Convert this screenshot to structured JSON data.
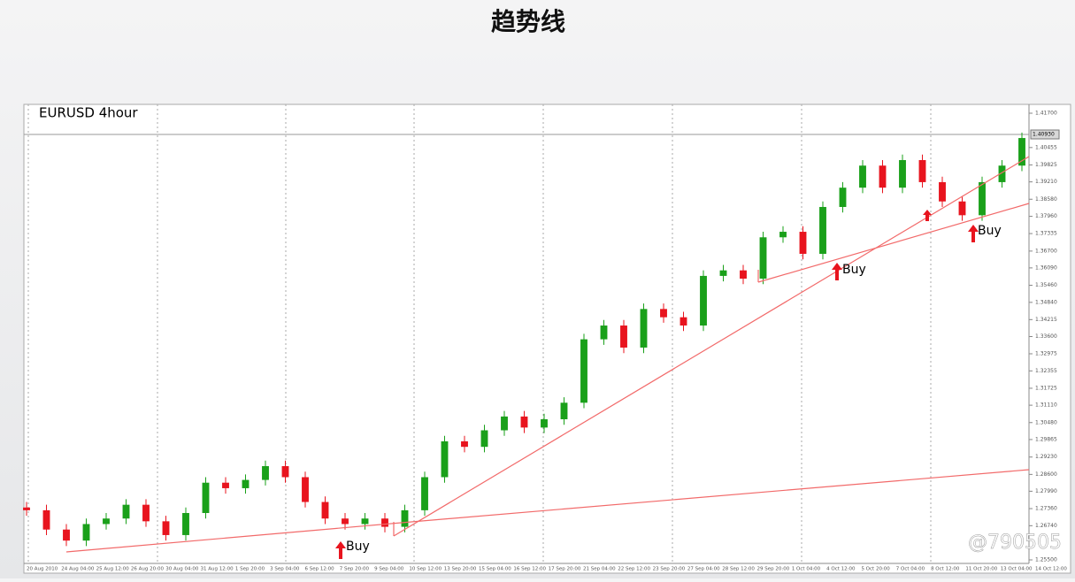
{
  "title": "趋势线",
  "watermark": "@790505",
  "chart_data": {
    "type": "candlestick",
    "title": "EURUSD 4hour",
    "up_color": "#1aa01a",
    "down_color": "#e8141e",
    "open": [
      1.274,
      1.273,
      1.266,
      1.262,
      1.268,
      1.27,
      1.275,
      1.269,
      1.264,
      1.272,
      1.283,
      1.281,
      1.284,
      1.289,
      1.285,
      1.276,
      1.27,
      1.268,
      1.27,
      1.267,
      1.273,
      1.285,
      1.298,
      1.296,
      1.302,
      1.307,
      1.303,
      1.306,
      1.312,
      1.335,
      1.34,
      1.332,
      1.346,
      1.343,
      1.34,
      1.358,
      1.36,
      1.357,
      1.372,
      1.374,
      1.366,
      1.383,
      1.39,
      1.398,
      1.39,
      1.4,
      1.392,
      1.385,
      1.38,
      1.392,
      1.398
    ],
    "high": [
      1.276,
      1.275,
      1.268,
      1.27,
      1.272,
      1.277,
      1.277,
      1.271,
      1.274,
      1.285,
      1.285,
      1.286,
      1.291,
      1.291,
      1.287,
      1.278,
      1.272,
      1.272,
      1.272,
      1.275,
      1.287,
      1.3,
      1.3,
      1.304,
      1.309,
      1.309,
      1.308,
      1.314,
      1.337,
      1.342,
      1.342,
      1.348,
      1.348,
      1.345,
      1.36,
      1.362,
      1.362,
      1.374,
      1.376,
      1.376,
      1.385,
      1.392,
      1.4,
      1.4,
      1.402,
      1.402,
      1.394,
      1.387,
      1.394,
      1.4,
      1.41
    ],
    "low": [
      1.271,
      1.264,
      1.26,
      1.26,
      1.266,
      1.268,
      1.267,
      1.262,
      1.262,
      1.27,
      1.279,
      1.279,
      1.282,
      1.283,
      1.274,
      1.268,
      1.266,
      1.266,
      1.265,
      1.265,
      1.271,
      1.283,
      1.294,
      1.294,
      1.3,
      1.301,
      1.301,
      1.304,
      1.31,
      1.333,
      1.33,
      1.33,
      1.341,
      1.338,
      1.338,
      1.356,
      1.355,
      1.355,
      1.37,
      1.364,
      1.364,
      1.381,
      1.388,
      1.388,
      1.388,
      1.39,
      1.383,
      1.378,
      1.378,
      1.39,
      1.396
    ],
    "close": [
      1.273,
      1.266,
      1.262,
      1.268,
      1.27,
      1.275,
      1.269,
      1.264,
      1.272,
      1.283,
      1.281,
      1.284,
      1.289,
      1.285,
      1.276,
      1.27,
      1.268,
      1.27,
      1.267,
      1.273,
      1.285,
      1.298,
      1.296,
      1.302,
      1.307,
      1.303,
      1.306,
      1.312,
      1.335,
      1.34,
      1.332,
      1.346,
      1.343,
      1.34,
      1.358,
      1.36,
      1.357,
      1.372,
      1.374,
      1.366,
      1.383,
      1.39,
      1.398,
      1.39,
      1.4,
      1.392,
      1.385,
      1.38,
      1.392,
      1.398,
      1.408
    ],
    "ylim": [
      1.255,
      1.417
    ],
    "yticks": [
      {
        "value": 1.255,
        "label": "1.25500"
      },
      {
        "value": 1.2674,
        "label": "1.26740"
      },
      {
        "value": 1.2736,
        "label": "1.27360"
      },
      {
        "value": 1.2799,
        "label": "1.27990"
      },
      {
        "value": 1.286,
        "label": "1.28600"
      },
      {
        "value": 1.2923,
        "label": "1.29230"
      },
      {
        "value": 1.29865,
        "label": "1.29865"
      },
      {
        "value": 1.3048,
        "label": "1.30480"
      },
      {
        "value": 1.3111,
        "label": "1.31110"
      },
      {
        "value": 1.31725,
        "label": "1.31725"
      },
      {
        "value": 1.32355,
        "label": "1.32355"
      },
      {
        "value": 1.32975,
        "label": "1.32975"
      },
      {
        "value": 1.336,
        "label": "1.33600"
      },
      {
        "value": 1.34215,
        "label": "1.34215"
      },
      {
        "value": 1.3484,
        "label": "1.34840"
      },
      {
        "value": 1.3546,
        "label": "1.35460"
      },
      {
        "value": 1.3609,
        "label": "1.36090"
      },
      {
        "value": 1.367,
        "label": "1.36700"
      },
      {
        "value": 1.37335,
        "label": "1.37335"
      },
      {
        "value": 1.3796,
        "label": "1.37960"
      },
      {
        "value": 1.3858,
        "label": "1.38580"
      },
      {
        "value": 1.3921,
        "label": "1.39210"
      },
      {
        "value": 1.39825,
        "label": "1.39825"
      },
      {
        "value": 1.40455,
        "label": "1.40455"
      },
      {
        "value": 1.417,
        "label": "1.41700"
      }
    ],
    "current_price": {
      "value": 1.4093,
      "label": "1.40930"
    },
    "x_labels": [
      "20 Aug 2010",
      "24 Aug 04:00",
      "25 Aug 12:00",
      "26 Aug 20:00",
      "30 Aug 04:00",
      "31 Aug 12:00",
      "1 Sep 20:00",
      "3 Sep 04:00",
      "6 Sep 12:00",
      "7 Sep 20:00",
      "9 Sep 04:00",
      "10 Sep 12:00",
      "13 Sep 20:00",
      "15 Sep 04:00",
      "16 Sep 12:00",
      "17 Sep 20:00",
      "21 Sep 04:00",
      "22 Sep 12:00",
      "23 Sep 20:00",
      "27 Sep 04:00",
      "28 Sep 12:00",
      "29 Sep 20:00",
      "1 Oct 04:00",
      "4 Oct 12:00",
      "5 Oct 20:00",
      "7 Oct 04:00",
      "8 Oct 12:00",
      "11 Oct 20:00",
      "13 Oct 04:00",
      "14 Oct 12:00"
    ],
    "annotations": [
      "Buy",
      "Buy",
      "Buy"
    ]
  }
}
